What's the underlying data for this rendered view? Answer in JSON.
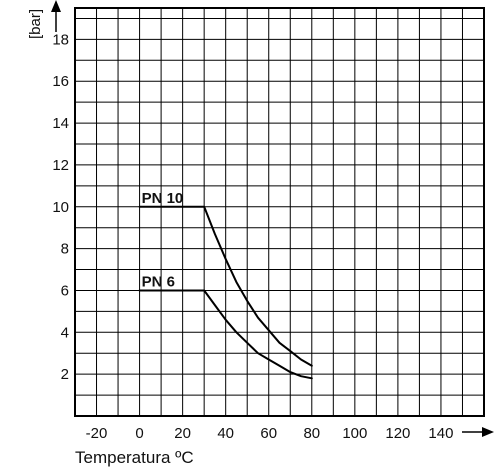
{
  "chart_data": {
    "type": "line",
    "title": "",
    "xlabel": "Temperatura ºC",
    "ylabel": "[bar]",
    "xlim": [
      -30,
      160
    ],
    "ylim": [
      0,
      19.5
    ],
    "x_ticks": [
      -20,
      0,
      20,
      40,
      60,
      80,
      100,
      120,
      140
    ],
    "y_ticks": [
      2,
      4,
      6,
      8,
      10,
      12,
      14,
      16,
      18
    ],
    "grid": true,
    "series": [
      {
        "name": "PN 10",
        "x": [
          0,
          30,
          35,
          40,
          45,
          50,
          55,
          60,
          65,
          70,
          75,
          80
        ],
        "y": [
          10,
          10,
          8.7,
          7.5,
          6.4,
          5.5,
          4.7,
          4.1,
          3.5,
          3.1,
          2.7,
          2.4
        ]
      },
      {
        "name": "PN 6",
        "x": [
          0,
          30,
          35,
          40,
          45,
          50,
          55,
          60,
          65,
          70,
          75,
          80
        ],
        "y": [
          6,
          6,
          5.3,
          4.6,
          4.0,
          3.5,
          3.0,
          2.7,
          2.4,
          2.1,
          1.9,
          1.8
        ]
      }
    ]
  }
}
